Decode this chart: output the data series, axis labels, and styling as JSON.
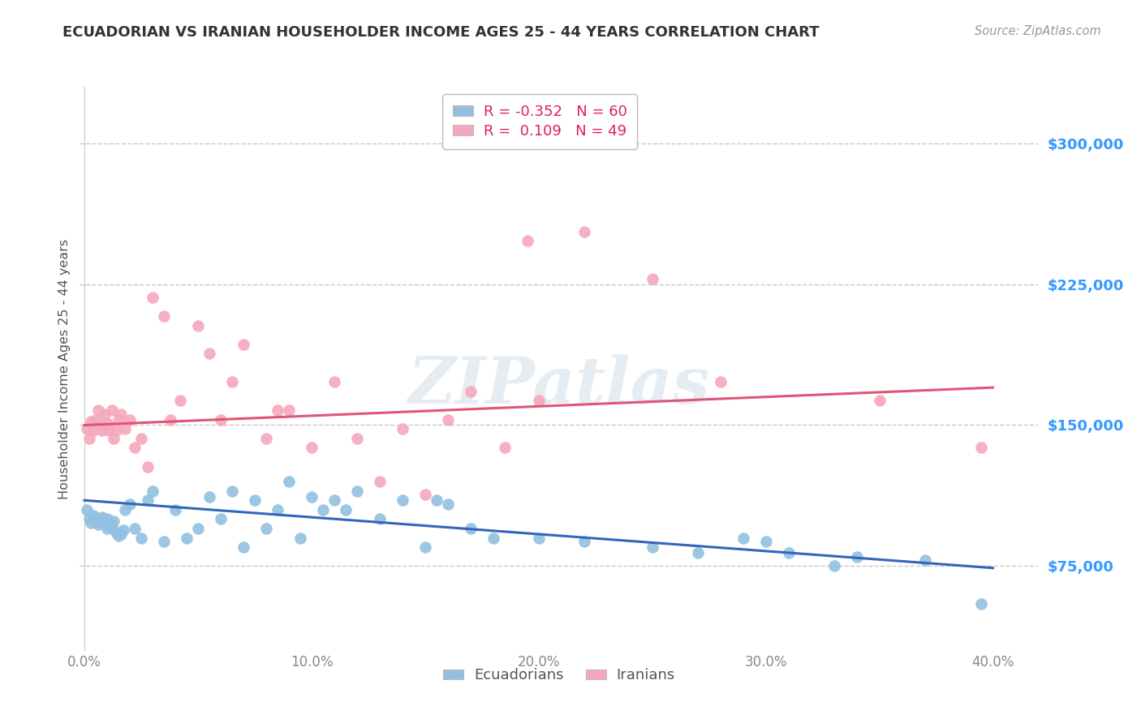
{
  "title": "ECUADORIAN VS IRANIAN HOUSEHOLDER INCOME AGES 25 - 44 YEARS CORRELATION CHART",
  "source_text": "Source: ZipAtlas.com",
  "ylabel": "Householder Income Ages 25 - 44 years",
  "xlim": [
    -0.002,
    0.42
  ],
  "ylim": [
    30000,
    330000
  ],
  "yticks": [
    75000,
    150000,
    225000,
    300000
  ],
  "ytick_labels": [
    "$75,000",
    "$150,000",
    "$225,000",
    "$300,000"
  ],
  "xticks": [
    0.0,
    0.1,
    0.2,
    0.3,
    0.4
  ],
  "xtick_labels": [
    "0.0%",
    "10.0%",
    "20.0%",
    "30.0%",
    "40.0%"
  ],
  "background_color": "#ffffff",
  "grid_color": "#c8c8c8",
  "watermark_text": "ZIPatlas",
  "legend_R_blue": "-0.352",
  "legend_N_blue": "60",
  "legend_R_pink": " 0.109",
  "legend_N_pink": "49",
  "blue_color": "#92c0e0",
  "pink_color": "#f5a8bc",
  "blue_line_color": "#3366bb",
  "pink_line_color": "#e05575",
  "label_color": "#3399ff",
  "tick_color": "#888888",
  "ecuadorians_label": "Ecuadorians",
  "iranians_label": "Iranians",
  "blue_scatter_x": [
    0.001,
    0.002,
    0.003,
    0.004,
    0.005,
    0.006,
    0.007,
    0.008,
    0.009,
    0.01,
    0.01,
    0.011,
    0.012,
    0.013,
    0.014,
    0.015,
    0.016,
    0.017,
    0.018,
    0.02,
    0.022,
    0.025,
    0.028,
    0.03,
    0.035,
    0.04,
    0.045,
    0.05,
    0.055,
    0.06,
    0.065,
    0.07,
    0.075,
    0.08,
    0.085,
    0.09,
    0.095,
    0.1,
    0.105,
    0.11,
    0.115,
    0.12,
    0.13,
    0.14,
    0.15,
    0.155,
    0.16,
    0.17,
    0.18,
    0.2,
    0.22,
    0.25,
    0.27,
    0.29,
    0.3,
    0.31,
    0.33,
    0.34,
    0.37,
    0.395
  ],
  "blue_scatter_y": [
    105000,
    100000,
    98000,
    102000,
    100000,
    97000,
    99000,
    101000,
    98000,
    100000,
    95000,
    98000,
    96000,
    99000,
    93000,
    91000,
    92000,
    94000,
    105000,
    108000,
    95000,
    90000,
    110000,
    115000,
    88000,
    105000,
    90000,
    95000,
    112000,
    100000,
    115000,
    85000,
    110000,
    95000,
    105000,
    120000,
    90000,
    112000,
    105000,
    110000,
    105000,
    115000,
    100000,
    110000,
    85000,
    110000,
    108000,
    95000,
    90000,
    90000,
    88000,
    85000,
    82000,
    90000,
    88000,
    82000,
    75000,
    80000,
    78000,
    55000
  ],
  "pink_scatter_x": [
    0.001,
    0.002,
    0.003,
    0.004,
    0.005,
    0.006,
    0.007,
    0.008,
    0.009,
    0.01,
    0.011,
    0.012,
    0.013,
    0.014,
    0.015,
    0.016,
    0.018,
    0.02,
    0.022,
    0.025,
    0.028,
    0.03,
    0.035,
    0.038,
    0.042,
    0.05,
    0.055,
    0.06,
    0.065,
    0.07,
    0.08,
    0.085,
    0.09,
    0.1,
    0.11,
    0.12,
    0.13,
    0.14,
    0.15,
    0.16,
    0.17,
    0.185,
    0.195,
    0.2,
    0.22,
    0.25,
    0.28,
    0.35,
    0.395
  ],
  "pink_scatter_y": [
    148000,
    143000,
    152000,
    147000,
    153000,
    158000,
    150000,
    147000,
    156000,
    151000,
    147000,
    158000,
    143000,
    147000,
    153000,
    156000,
    148000,
    153000,
    138000,
    143000,
    128000,
    218000,
    208000,
    153000,
    163000,
    203000,
    188000,
    153000,
    173000,
    193000,
    143000,
    158000,
    158000,
    138000,
    173000,
    143000,
    120000,
    148000,
    113000,
    153000,
    168000,
    138000,
    248000,
    163000,
    253000,
    228000,
    173000,
    163000,
    138000
  ],
  "blue_line_x": [
    0.0,
    0.4
  ],
  "blue_line_y": [
    110000,
    74000
  ],
  "pink_line_x": [
    0.0,
    0.4
  ],
  "pink_line_y": [
    150000,
    170000
  ]
}
